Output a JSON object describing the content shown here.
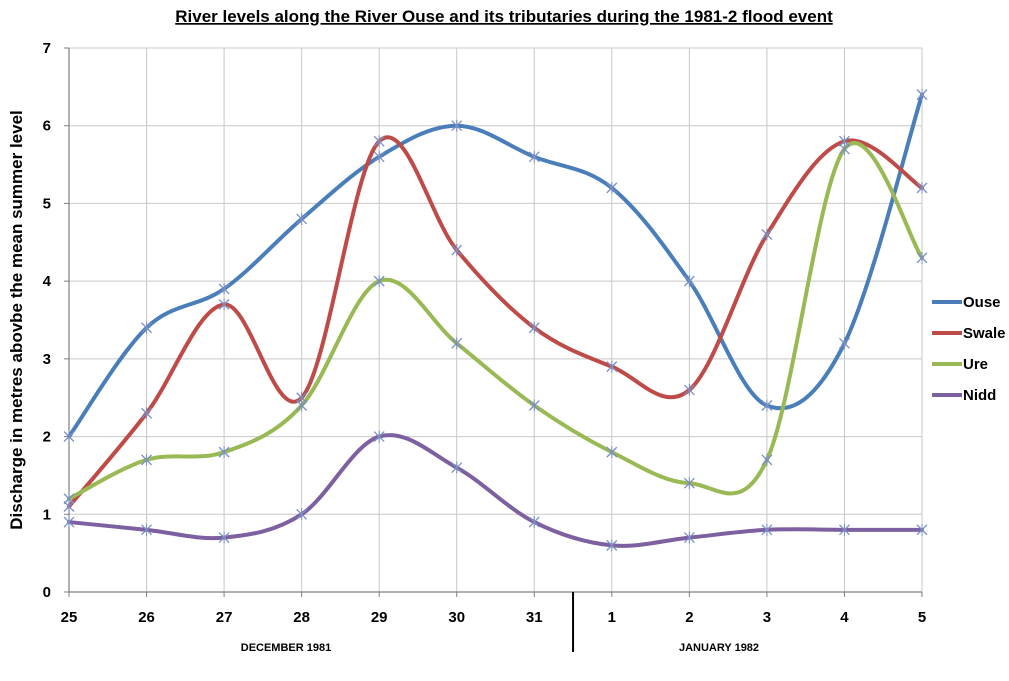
{
  "chart_data": {
    "type": "line",
    "title": "River levels along the River Ouse and its tributaries during the 1981-2 flood event",
    "ylabel": "Discharge in metres abovbe the mean summer level",
    "xlabel": "",
    "ylim": [
      0,
      7
    ],
    "y_ticks": [
      "0",
      "1",
      "2",
      "3",
      "4",
      "5",
      "6",
      "7"
    ],
    "categories": [
      "25",
      "26",
      "27",
      "28",
      "29",
      "30",
      "31",
      "1",
      "2",
      "3",
      "4",
      "5"
    ],
    "period_labels": [
      "DECEMBER 1981",
      "JANUARY 1982"
    ],
    "grid": true,
    "legend_position": "right",
    "series": [
      {
        "name": "Ouse",
        "color": "#4a7ebb",
        "values": [
          2.0,
          3.4,
          3.9,
          4.8,
          5.6,
          6.0,
          5.6,
          5.2,
          4.0,
          2.4,
          3.2,
          6.4
        ]
      },
      {
        "name": "Swale",
        "color": "#be4b48",
        "values": [
          1.1,
          2.3,
          3.7,
          2.5,
          5.8,
          4.4,
          3.4,
          2.9,
          2.6,
          4.6,
          5.8,
          5.2
        ]
      },
      {
        "name": "Ure",
        "color": "#98b954",
        "values": [
          1.2,
          1.7,
          1.8,
          2.4,
          4.0,
          3.2,
          2.4,
          1.8,
          1.4,
          1.7,
          5.7,
          4.3
        ]
      },
      {
        "name": "Nidd",
        "color": "#7d60a0",
        "values": [
          0.9,
          0.8,
          0.7,
          1.0,
          2.0,
          1.6,
          0.9,
          0.6,
          0.7,
          0.8,
          0.8,
          0.8
        ]
      }
    ]
  }
}
